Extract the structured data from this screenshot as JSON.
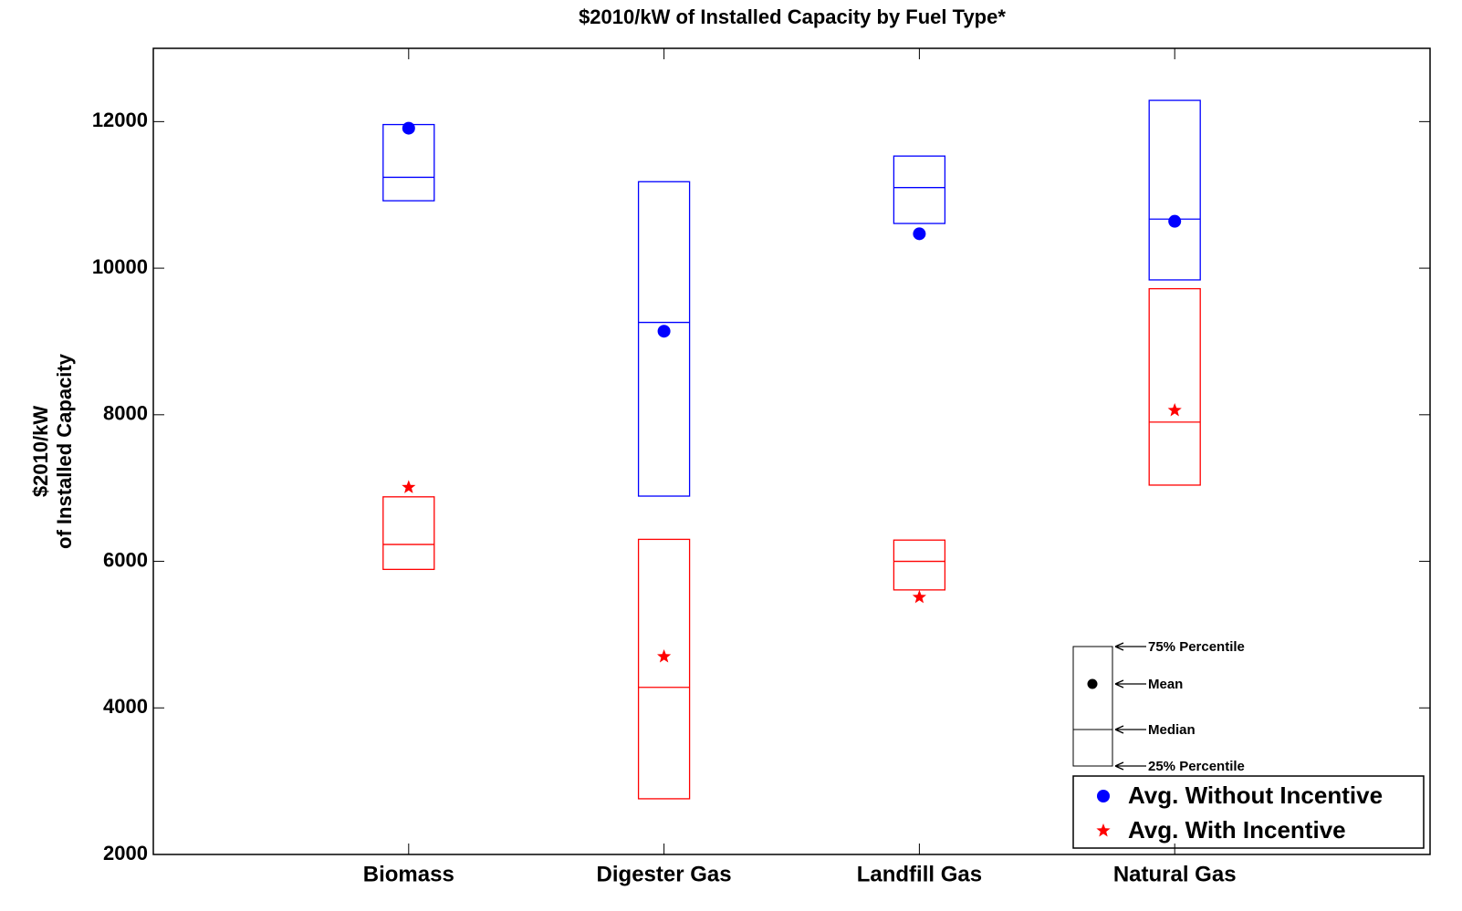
{
  "chart_data": {
    "type": "box",
    "title": "$2010/kW of Installed Capacity by Fuel Type*",
    "ylabel": [
      "$2010/kW",
      "of Installed Capacity"
    ],
    "categories": [
      "Biomass",
      "Digester Gas",
      "Landfill Gas",
      "Natural Gas"
    ],
    "ylim": [
      2000,
      13000
    ],
    "yticks": [
      2000,
      4000,
      6000,
      8000,
      10000,
      12000
    ],
    "series": [
      {
        "name": "Avg. Without Incentive",
        "color": "#0000ff",
        "marker": "circle",
        "q1": [
          10920,
          6890,
          10610,
          9840
        ],
        "median": [
          11240,
          9260,
          11100,
          10670
        ],
        "q3": [
          11960,
          11180,
          11530,
          12290
        ],
        "mean": [
          11910,
          9140,
          10470,
          10640
        ]
      },
      {
        "name": "Avg. With Incentive",
        "color": "#ff0000",
        "marker": "star",
        "q1": [
          5890,
          2760,
          5610,
          7040
        ],
        "median": [
          6230,
          4280,
          6000,
          7900
        ],
        "q3": [
          6880,
          6300,
          6290,
          9720
        ],
        "mean": [
          7010,
          4700,
          5510,
          8060
        ]
      }
    ],
    "box_key": [
      "75% Percentile",
      "Mean",
      "Median",
      "25% Percentile"
    ],
    "legend": "lower right"
  }
}
